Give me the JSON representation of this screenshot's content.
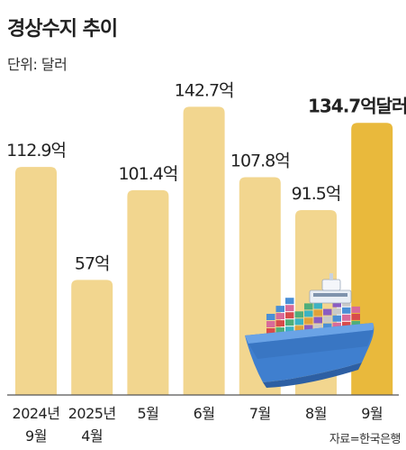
{
  "chart_data": {
    "type": "bar",
    "title": "경상수지 추이",
    "unit_label": "단위: 달러",
    "source": "자료=한국은행",
    "categories": [
      [
        "2024년",
        "9월"
      ],
      [
        "2025년",
        "4월"
      ],
      [
        "5월"
      ],
      [
        "6월"
      ],
      [
        "7월"
      ],
      [
        "8월"
      ],
      [
        "9월"
      ]
    ],
    "values": [
      112.9,
      57,
      101.4,
      142.7,
      107.8,
      91.5,
      134.7
    ],
    "value_labels": [
      "112.9억",
      "57억",
      "101.4억",
      "142.7억",
      "107.8억",
      "91.5억",
      "134.7억달러"
    ],
    "highlight_index": 6,
    "ylim": [
      0,
      150
    ],
    "grid": false,
    "legend": "none",
    "colors": {
      "bar": "#f2d68f",
      "bar_highlight": "#e9b93c",
      "baseline": "#555555"
    }
  },
  "illustration": {
    "icon": "container-ship-icon"
  }
}
